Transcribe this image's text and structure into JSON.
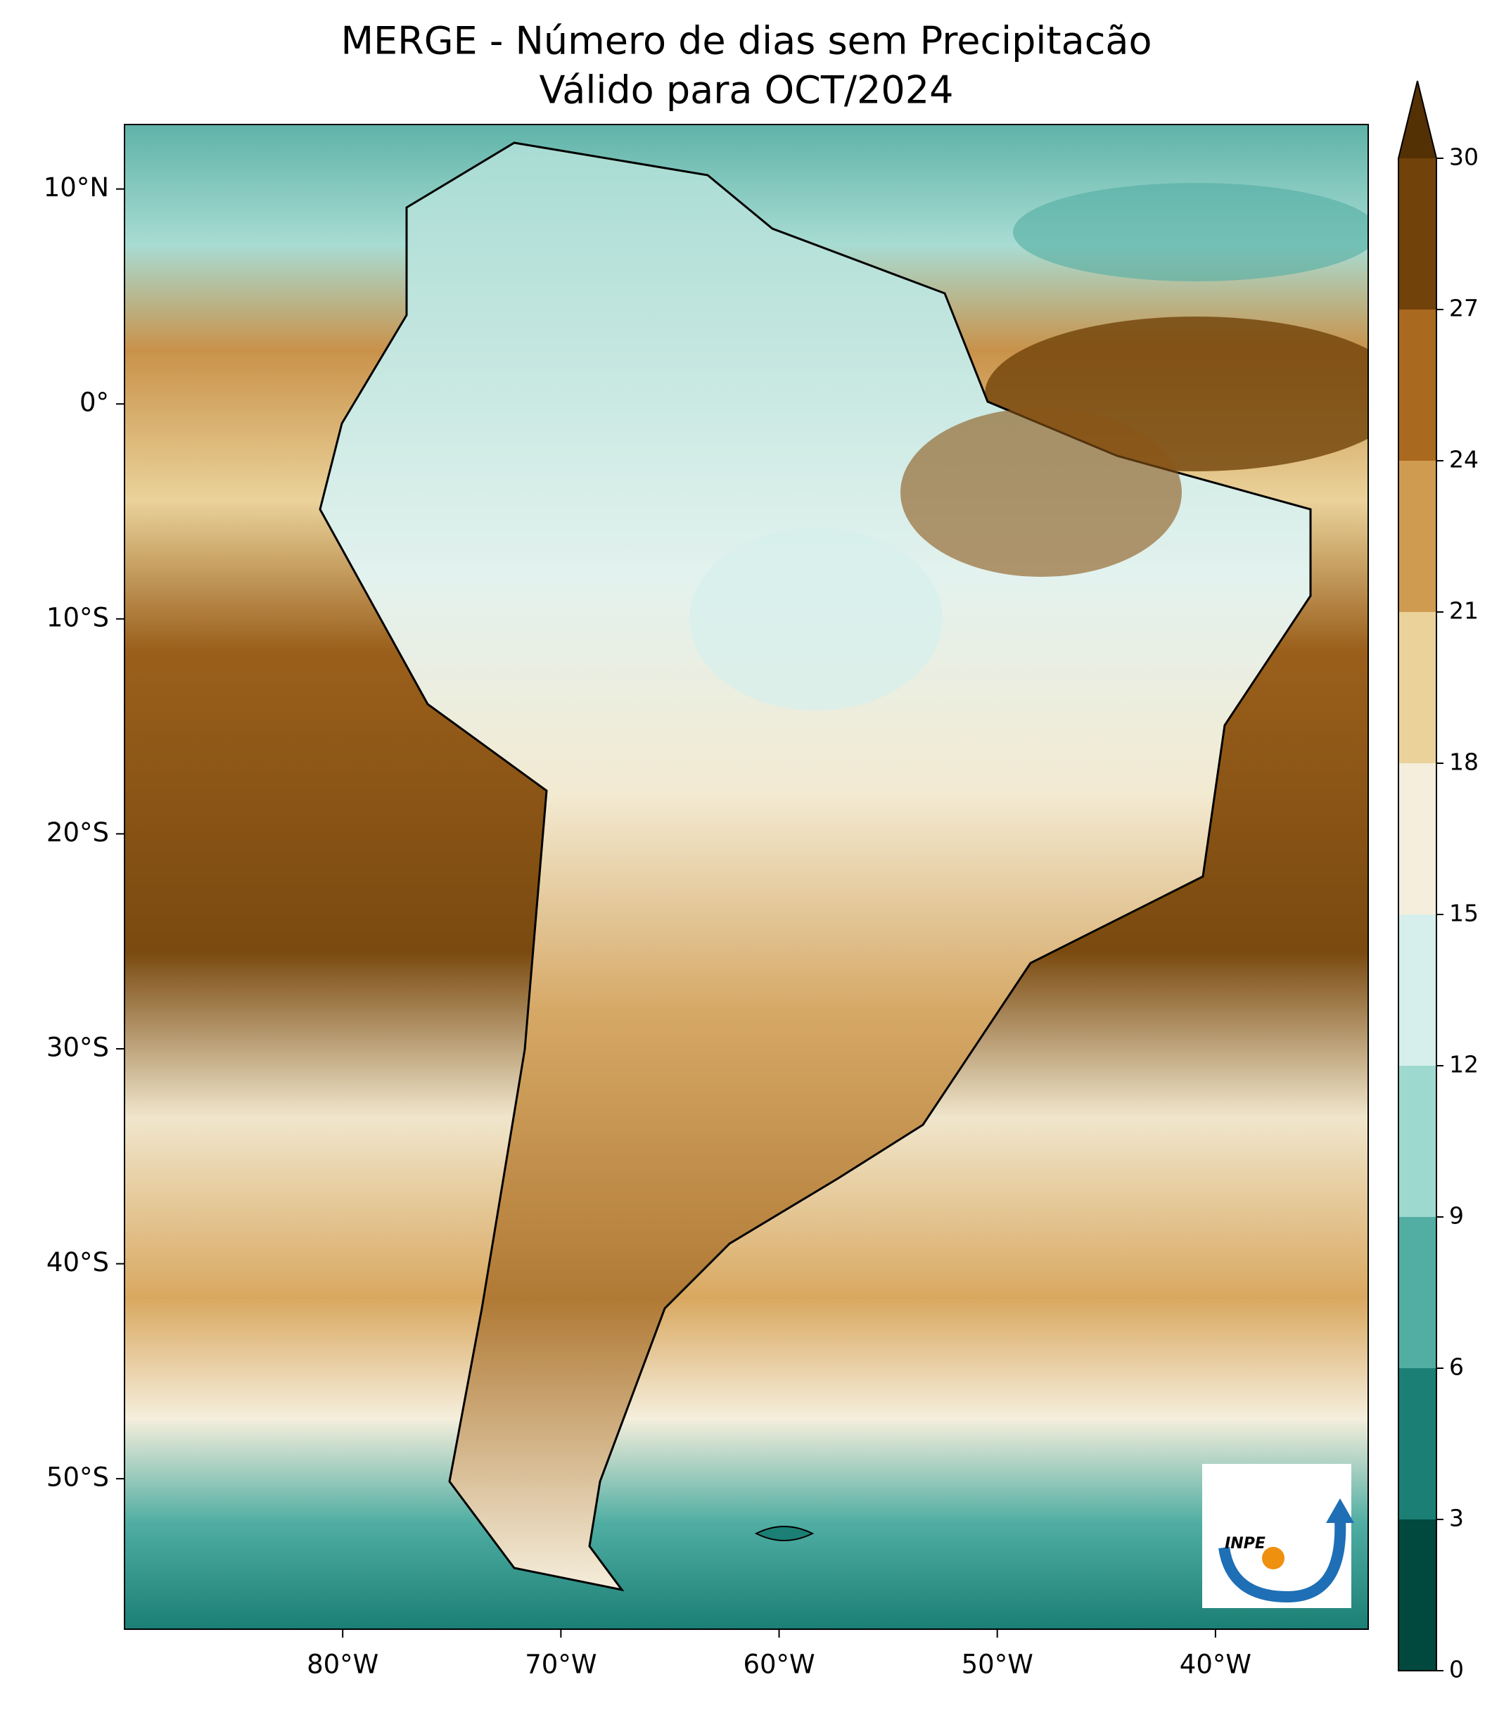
{
  "map": {
    "title": "MERGE - Número de dias sem Precipitacão",
    "subtitle": "Válido para OCT/2024",
    "xlim": [
      -90,
      -33
    ],
    "ylim": [
      -57,
      13
    ],
    "xticks": [
      {
        "value": -80,
        "label": "80°W"
      },
      {
        "value": -70,
        "label": "70°W"
      },
      {
        "value": -60,
        "label": "60°W"
      },
      {
        "value": -50,
        "label": "50°W"
      },
      {
        "value": -40,
        "label": "40°W"
      }
    ],
    "yticks": [
      {
        "value": 10,
        "label": "10°N"
      },
      {
        "value": 0,
        "label": "0°"
      },
      {
        "value": -10,
        "label": "10°S"
      },
      {
        "value": -20,
        "label": "20°S"
      },
      {
        "value": -30,
        "label": "30°S"
      },
      {
        "value": -40,
        "label": "40°S"
      },
      {
        "value": -50,
        "label": "50°S"
      }
    ],
    "colorbar": {
      "levels": [
        0,
        3,
        6,
        9,
        12,
        15,
        18,
        21,
        24,
        27,
        30
      ],
      "colors": [
        "#01493f",
        "#1b7f75",
        "#52aea3",
        "#9dd9cf",
        "#d6efec",
        "#f5eedc",
        "#ead29a",
        "#cf9b51",
        "#a9691f",
        "#714209"
      ],
      "extend_color": "#543005"
    },
    "logo_text": "INPE"
  }
}
